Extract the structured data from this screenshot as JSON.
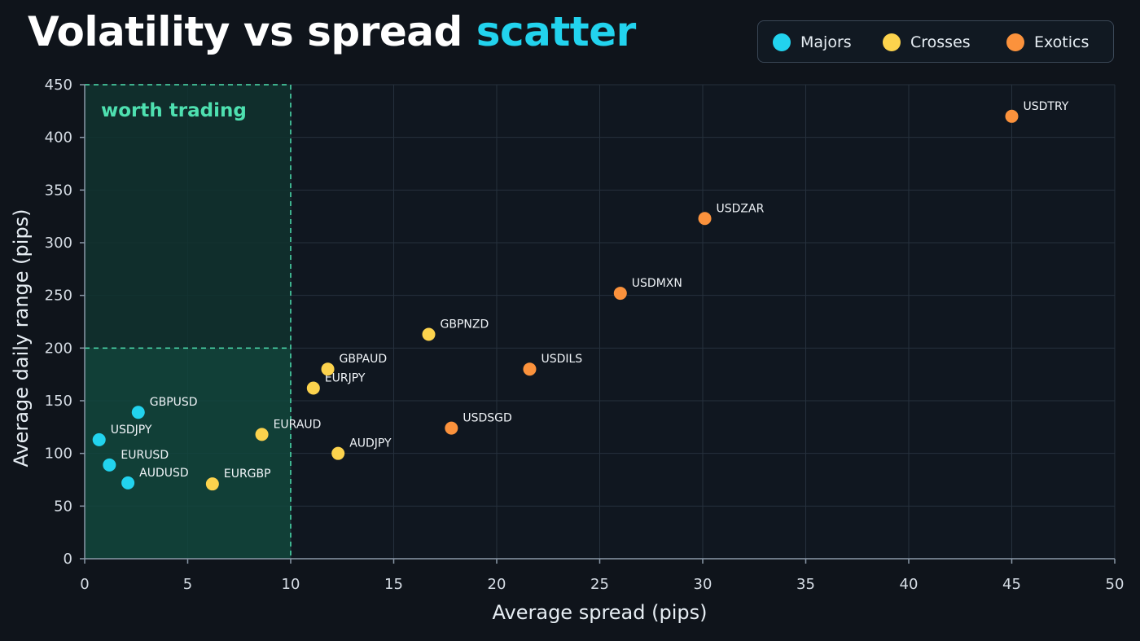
{
  "chart_data": {
    "type": "scatter",
    "title": "Volatility vs spread",
    "title_accent": "scatter",
    "xlabel": "Average spread (pips)",
    "ylabel": "Average daily range (pips)",
    "xlim": [
      0,
      50
    ],
    "ylim": [
      0,
      450
    ],
    "xticks": [
      0,
      5,
      10,
      15,
      20,
      25,
      30,
      35,
      40,
      45,
      50
    ],
    "yticks": [
      0,
      50,
      100,
      150,
      200,
      250,
      300,
      350,
      400,
      450
    ],
    "grid": true,
    "legend_position": "top-right",
    "highlight_region": {
      "label": "worth trading",
      "x_max": 10,
      "y_max": 200,
      "color": "#4ee0b0"
    },
    "series": [
      {
        "name": "Majors",
        "color": "#22d3ee",
        "points": [
          {
            "label": "GBPUSD",
            "x": 2.6,
            "y": 139
          },
          {
            "label": "USDJPY",
            "x": 0.7,
            "y": 113
          },
          {
            "label": "EURUSD",
            "x": 1.2,
            "y": 89
          },
          {
            "label": "AUDUSD",
            "x": 2.1,
            "y": 72
          }
        ]
      },
      {
        "name": "Crosses",
        "color": "#fcd34d",
        "points": [
          {
            "label": "EURGBP",
            "x": 6.2,
            "y": 71
          },
          {
            "label": "EURAUD",
            "x": 8.6,
            "y": 118
          },
          {
            "label": "EURJPY",
            "x": 11.1,
            "y": 162
          },
          {
            "label": "GBPAUD",
            "x": 11.8,
            "y": 180
          },
          {
            "label": "AUDJPY",
            "x": 12.3,
            "y": 100
          },
          {
            "label": "GBPNZD",
            "x": 16.7,
            "y": 213
          }
        ]
      },
      {
        "name": "Exotics",
        "color": "#fb923c",
        "points": [
          {
            "label": "USDSGD",
            "x": 17.8,
            "y": 124
          },
          {
            "label": "USDILS",
            "x": 21.6,
            "y": 180
          },
          {
            "label": "USDMXN",
            "x": 26.0,
            "y": 252
          },
          {
            "label": "USDZAR",
            "x": 30.1,
            "y": 323
          },
          {
            "label": "USDTRY",
            "x": 45.0,
            "y": 420
          }
        ]
      }
    ]
  }
}
